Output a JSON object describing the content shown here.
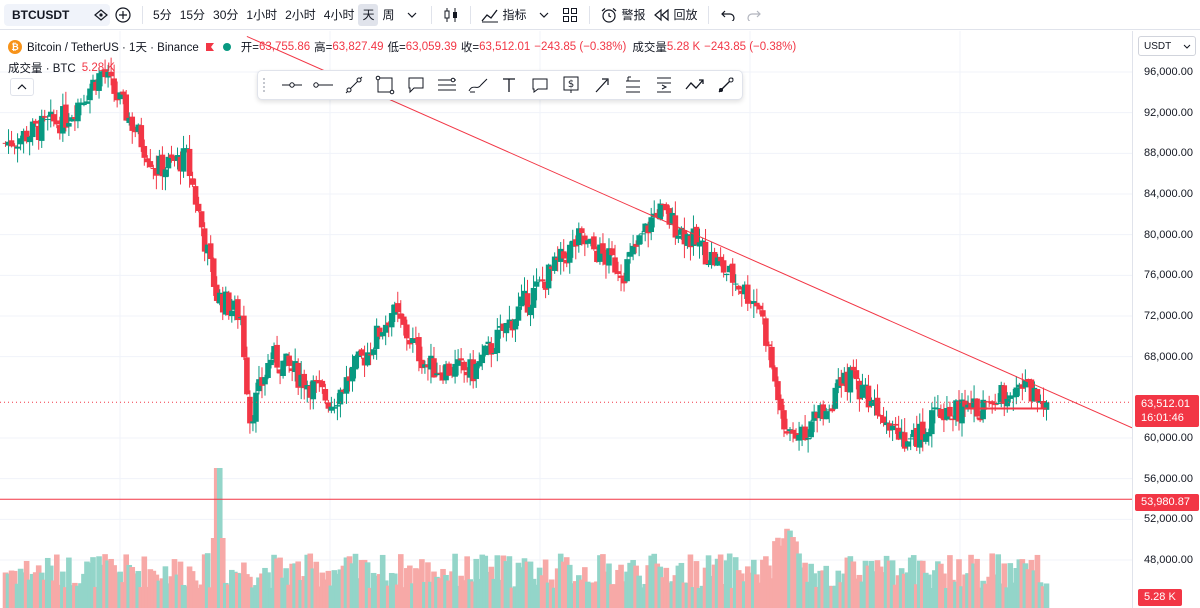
{
  "toolbar": {
    "symbol": "BTCUSDT",
    "intervals": [
      "5分",
      "15分",
      "30分",
      "1小时",
      "2小时",
      "4小时",
      "天",
      "周"
    ],
    "active_interval": "天",
    "indicators_label": "指标",
    "alerts_label": "警报",
    "replay_label": "回放"
  },
  "legend": {
    "title": "Bitcoin / TetherUS · 1天 · Binance",
    "coin_logo_glyph": "₿",
    "open_label": "开=",
    "open_value": "63,755.86",
    "high_label": "高=",
    "high_value": "63,827.49",
    "low_label": "低=",
    "low_value": "63,059.39",
    "close_label": "收=",
    "close_value": "63,512.01",
    "change_value": "−243.85 (−0.38%)",
    "volume_label": "成交量",
    "volume_value": "5.28 K",
    "volume_change": "−243.85 (−0.38%)",
    "pane_volume_label": "成交量 · BTC",
    "pane_volume_value": "5.28 K"
  },
  "price_scale": {
    "currency": "USDT",
    "ticks": [
      "96,000.00",
      "92,000.00",
      "88,000.00",
      "84,000.00",
      "80,000.00",
      "76,000.00",
      "72,000.00",
      "68,000.00",
      "60,000.00",
      "56,000.00",
      "52,000.00",
      "48,000.00"
    ],
    "current_price": "63,512.01",
    "countdown": "16:01:46",
    "hline_price": "53,980.87",
    "volume_tag": "5.28 K"
  },
  "colors": {
    "up": "#089981",
    "down": "#f23645",
    "up_volume": "#93d5c9",
    "down_volume": "#f7a9a7",
    "trendline": "#f23645",
    "horizontal_line": "#f23645",
    "accent": "#2962ff"
  },
  "drawing_tools": [
    "horizontal-ray-icon",
    "horizontal-line-icon",
    "trend-line-icon",
    "rectangle-icon",
    "callout-icon",
    "parallel-channel-icon",
    "brush-icon",
    "text-icon",
    "comment-icon",
    "price-label-icon",
    "arrow-icon",
    "long-position-icon",
    "short-position-icon",
    "path-icon",
    "ruler-icon"
  ],
  "chart_data": {
    "type": "candlestick",
    "ylim": [
      44000,
      98000
    ],
    "yticks": [
      48000,
      52000,
      56000,
      60000,
      68000,
      72000,
      76000,
      80000,
      84000,
      88000,
      92000,
      96000
    ],
    "series": [
      {
        "name": "BTCUSDT",
        "ohlc_keyframes": [
          {
            "x": 0,
            "close": 89000
          },
          {
            "x": 20,
            "close": 91500
          },
          {
            "x": 32,
            "close": 96000
          },
          {
            "x": 40,
            "close": 92000
          },
          {
            "x": 50,
            "close": 86500
          },
          {
            "x": 60,
            "close": 87500
          },
          {
            "x": 70,
            "close": 74000
          },
          {
            "x": 78,
            "close": 72000
          },
          {
            "x": 81,
            "close": 62000
          },
          {
            "x": 88,
            "close": 68000
          },
          {
            "x": 98,
            "close": 66000
          },
          {
            "x": 108,
            "close": 63500
          },
          {
            "x": 120,
            "close": 68500
          },
          {
            "x": 128,
            "close": 72500
          },
          {
            "x": 140,
            "close": 67000
          },
          {
            "x": 155,
            "close": 66500
          },
          {
            "x": 170,
            "close": 72500
          },
          {
            "x": 190,
            "close": 79500
          },
          {
            "x": 205,
            "close": 76500
          },
          {
            "x": 216,
            "close": 82500
          },
          {
            "x": 235,
            "close": 77500
          },
          {
            "x": 250,
            "close": 73000
          },
          {
            "x": 258,
            "close": 61000
          },
          {
            "x": 266,
            "close": 61000
          },
          {
            "x": 280,
            "close": 66000
          },
          {
            "x": 290,
            "close": 63000
          },
          {
            "x": 300,
            "close": 59500
          },
          {
            "x": 310,
            "close": 62500
          },
          {
            "x": 325,
            "close": 63000
          },
          {
            "x": 335,
            "close": 65500
          },
          {
            "x": 345,
            "close": 63512
          }
        ]
      }
    ],
    "annotations": {
      "trendline": {
        "from": {
          "x": 80,
          "price": 99500
        },
        "to": {
          "x": 372,
          "price": 62200
        }
      },
      "horizontal_line": 53980.87,
      "current_price_line": 63512.01,
      "horizontal_ray": 62900
    }
  }
}
